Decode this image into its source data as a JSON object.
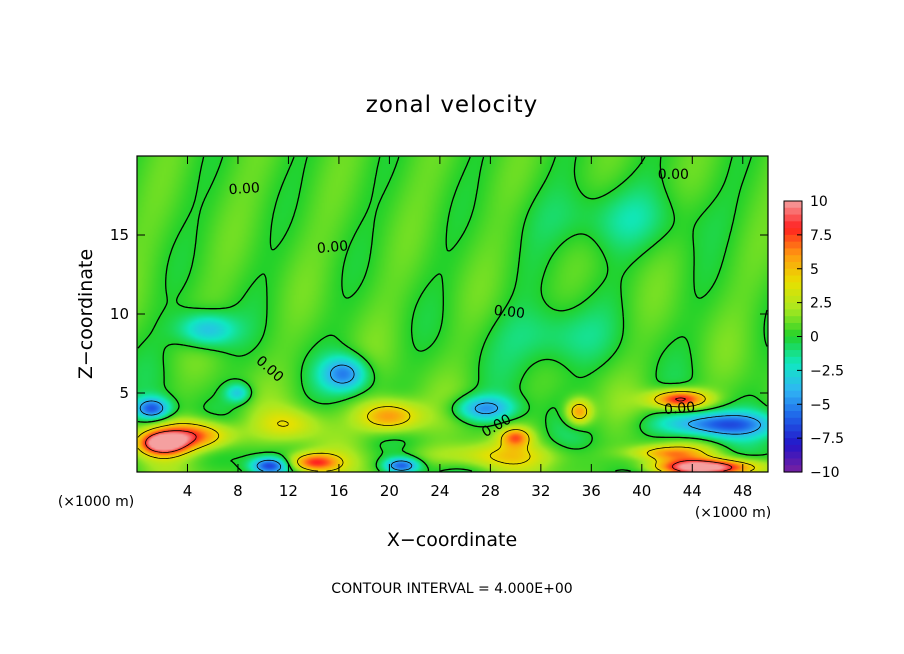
{
  "chart_data": {
    "type": "heatmap",
    "title": "zonal velocity",
    "xlabel": "X−coordinate",
    "ylabel": "Z−coordinate",
    "x_unit_label": "(×1000 m)",
    "y_unit_label": "(×1000 m)",
    "x_ticks": [
      "4",
      "8",
      "12",
      "16",
      "20",
      "24",
      "28",
      "32",
      "36",
      "40",
      "44",
      "48"
    ],
    "y_ticks": [
      "5",
      "10",
      "15"
    ],
    "xlim": [
      0,
      50
    ],
    "ylim": [
      0,
      20
    ],
    "contour_label": "0.00",
    "footer": "CONTOUR INTERVAL = 4.000E+00",
    "colorbar": {
      "range": [
        -10,
        10
      ],
      "ticks": [
        "10",
        "7.5",
        "5",
        "2.5",
        "0",
        "−2.5",
        "−5",
        "−7.5",
        "−10"
      ],
      "colors": [
        "#f5a0a0",
        "#ff2020",
        "#ff9a10",
        "#e8e000",
        "#a8e820",
        "#22d22a",
        "#10e8c0",
        "#30b4f5",
        "#1e60e8",
        "#2414c8",
        "#7820a0"
      ]
    },
    "features": [
      {
        "x": 2,
        "z": 1.8,
        "u": 9.5,
        "rx": 1.8,
        "rz": 0.7
      },
      {
        "x": 4.5,
        "z": 2.3,
        "u": 7.5,
        "rx": 3.0,
        "rz": 0.9
      },
      {
        "x": 1.2,
        "z": 4.0,
        "u": -6.5,
        "rx": 1.4,
        "rz": 0.7
      },
      {
        "x": 5.5,
        "z": 9.0,
        "u": -4.5,
        "rx": 2.2,
        "rz": 1.1
      },
      {
        "x": 8,
        "z": 5.0,
        "u": -3.5,
        "rx": 1.0,
        "rz": 0.6
      },
      {
        "x": 10.5,
        "z": 0.4,
        "u": -6.5,
        "rx": 1.4,
        "rz": 0.5
      },
      {
        "x": 14,
        "z": 0.6,
        "u": 7.0,
        "rx": 2.0,
        "rz": 0.6
      },
      {
        "x": 16.5,
        "z": 6.2,
        "u": -5.5,
        "rx": 1.8,
        "rz": 1.1
      },
      {
        "x": 20,
        "z": 3.5,
        "u": 6.5,
        "rx": 2.4,
        "rz": 1.0
      },
      {
        "x": 21,
        "z": 0.4,
        "u": -6.5,
        "rx": 1.4,
        "rz": 0.5
      },
      {
        "x": 27.5,
        "z": 4.0,
        "u": -5.0,
        "rx": 2.4,
        "rz": 0.8
      },
      {
        "x": 30,
        "z": 2.2,
        "u": 5.5,
        "rx": 1.2,
        "rz": 0.6
      },
      {
        "x": 35,
        "z": 3.8,
        "u": 6.0,
        "rx": 1.0,
        "rz": 0.8
      },
      {
        "x": 43,
        "z": 4.6,
        "u": 8.5,
        "rx": 2.2,
        "rz": 0.6
      },
      {
        "x": 46,
        "z": 3.0,
        "u": -6.5,
        "rx": 4.5,
        "rz": 0.8
      },
      {
        "x": 45,
        "z": 0.3,
        "u": 10.0,
        "rx": 4.0,
        "rz": 0.5
      },
      {
        "x": 42,
        "z": 1.2,
        "u": 5.0,
        "rx": 3.0,
        "rz": 0.5
      },
      {
        "x": 33,
        "z": 8.5,
        "u": -2.2,
        "rx": 4.0,
        "rz": 2.0
      },
      {
        "x": 38,
        "z": 16.0,
        "u": -1.8,
        "rx": 6.0,
        "rz": 2.0
      },
      {
        "x": 28,
        "z": 1.0,
        "u": 3.0,
        "rx": 6.0,
        "rz": 0.8
      },
      {
        "x": 12,
        "z": 3.0,
        "u": 3.0,
        "rx": 2.5,
        "rz": 1.0
      }
    ]
  }
}
